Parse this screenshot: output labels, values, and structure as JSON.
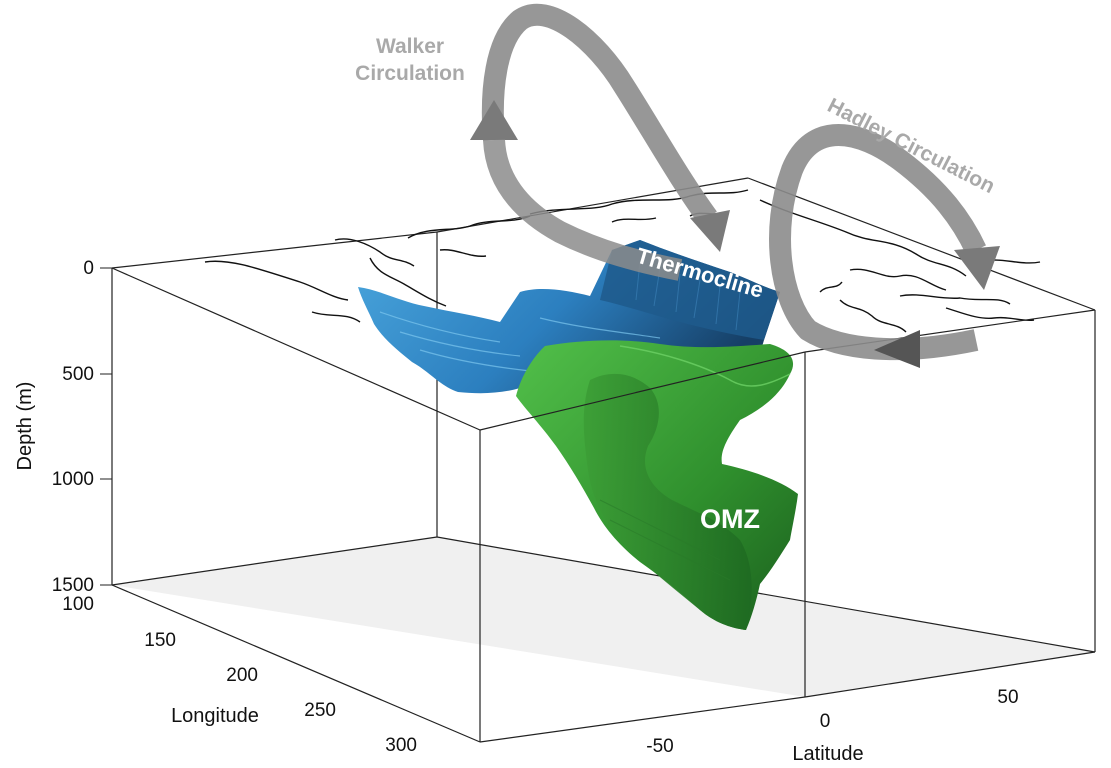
{
  "labels": {
    "walker_line1": "Walker",
    "walker_line2": "Circulation",
    "hadley": "Hadley Circulation",
    "thermocline": "Thermocline",
    "omz": "OMZ"
  },
  "axes": {
    "depth_title": "Depth (m)",
    "depth_ticks": [
      "0",
      "500",
      "1000",
      "1500"
    ],
    "longitude_title": "Longitude",
    "longitude_ticks": [
      "100",
      "150",
      "200",
      "250",
      "300"
    ],
    "latitude_title": "Latitude",
    "latitude_ticks": [
      "-50",
      "0",
      "50"
    ]
  },
  "colors": {
    "thermocline": "#2f86c2",
    "thermocline_dark": "#1b4f7a",
    "omz": "#3ea33a",
    "omz_dark": "#1d6b22",
    "circulation_arrow": "#8c8c8c",
    "floor": "#f0f0f0"
  }
}
